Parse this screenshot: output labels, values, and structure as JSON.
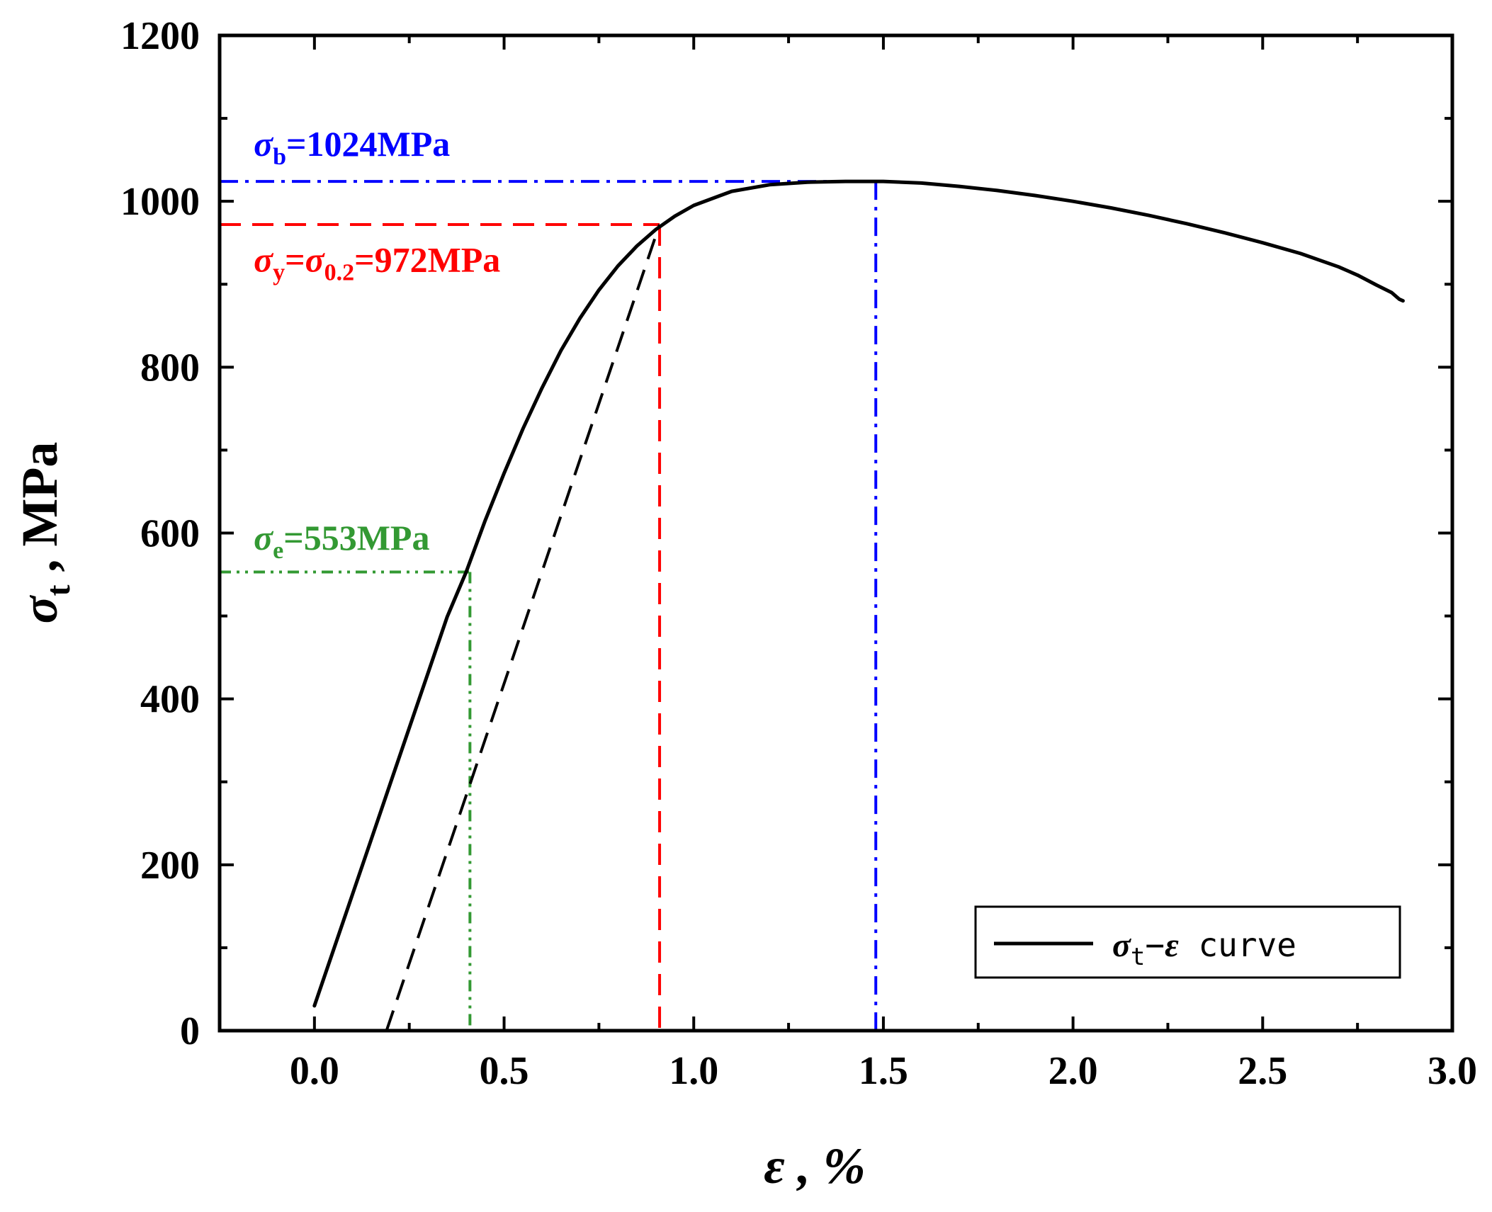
{
  "chart_data": {
    "type": "line",
    "title": "",
    "xlabel": "ε , %",
    "ylabel": "σt , MPa",
    "xlim": [
      -0.25,
      3.0
    ],
    "ylim": [
      0,
      1200
    ],
    "x_ticks": [
      0.0,
      0.5,
      1.0,
      1.5,
      2.0,
      2.5,
      3.0
    ],
    "x_tick_labels": [
      "0.0",
      "0.5",
      "1.0",
      "1.5",
      "2.0",
      "2.5",
      "3.0"
    ],
    "y_ticks": [
      0,
      200,
      400,
      600,
      800,
      1000,
      1200
    ],
    "y_tick_labels": [
      "0",
      "200",
      "400",
      "600",
      "800",
      "1000",
      "1200"
    ],
    "grid": false,
    "legend": {
      "position": "bottom-right",
      "entries": [
        "σt−ε curve"
      ]
    },
    "series": [
      {
        "name": "σt−ε curve",
        "color": "#000000",
        "style": "solid",
        "x": [
          0.0,
          0.05,
          0.1,
          0.15,
          0.2,
          0.25,
          0.3,
          0.35,
          0.4,
          0.45,
          0.5,
          0.55,
          0.6,
          0.65,
          0.7,
          0.75,
          0.8,
          0.85,
          0.9,
          0.95,
          1.0,
          1.1,
          1.2,
          1.3,
          1.4,
          1.5,
          1.6,
          1.7,
          1.8,
          1.9,
          2.0,
          2.1,
          2.2,
          2.3,
          2.4,
          2.5,
          2.6,
          2.7,
          2.75,
          2.8,
          2.84,
          2.86,
          2.87
        ],
        "y": [
          30,
          97,
          164,
          231,
          298,
          365,
          432,
          499,
          553,
          615,
          672,
          726,
          775,
          820,
          859,
          893,
          922,
          946,
          966,
          982,
          995,
          1012,
          1020,
          1023,
          1024,
          1024,
          1022,
          1018,
          1013,
          1007,
          1000,
          992,
          983,
          973,
          962,
          950,
          937,
          921,
          911,
          899,
          890,
          882,
          880
        ]
      }
    ],
    "offset_line": {
      "name": "0.2% offset line",
      "color": "#000000",
      "style": "dashed",
      "x": [
        0.19,
        0.91
      ],
      "y": [
        0,
        972
      ]
    },
    "reference_lines": [
      {
        "name": "sigma_b",
        "color": "#0000ff",
        "style": "dashdot",
        "x": 1.48,
        "y": 1024
      },
      {
        "name": "sigma_y",
        "color": "#ff0000",
        "style": "dashed",
        "x": 0.91,
        "y": 972
      },
      {
        "name": "sigma_e",
        "color": "#339933",
        "style": "dashdotdot",
        "x": 0.41,
        "y": 553
      }
    ],
    "annotations": [
      {
        "name": "sigma-b-label",
        "sym": "σ",
        "sub": "b",
        "text": "=1024MPa",
        "color": "#0000ff",
        "x": -0.16,
        "y": 1055
      },
      {
        "name": "sigma-y-label",
        "sym": "σ",
        "sub": "y",
        "mid": "=",
        "sym2": "σ",
        "sub2": "0.2",
        "text": "=972MPa",
        "color": "#ff0000",
        "x": -0.16,
        "y": 915
      },
      {
        "name": "sigma-e-label",
        "sym": "σ",
        "sub": "e",
        "text": "=553MPa",
        "color": "#339933",
        "x": -0.16,
        "y": 580
      }
    ]
  }
}
